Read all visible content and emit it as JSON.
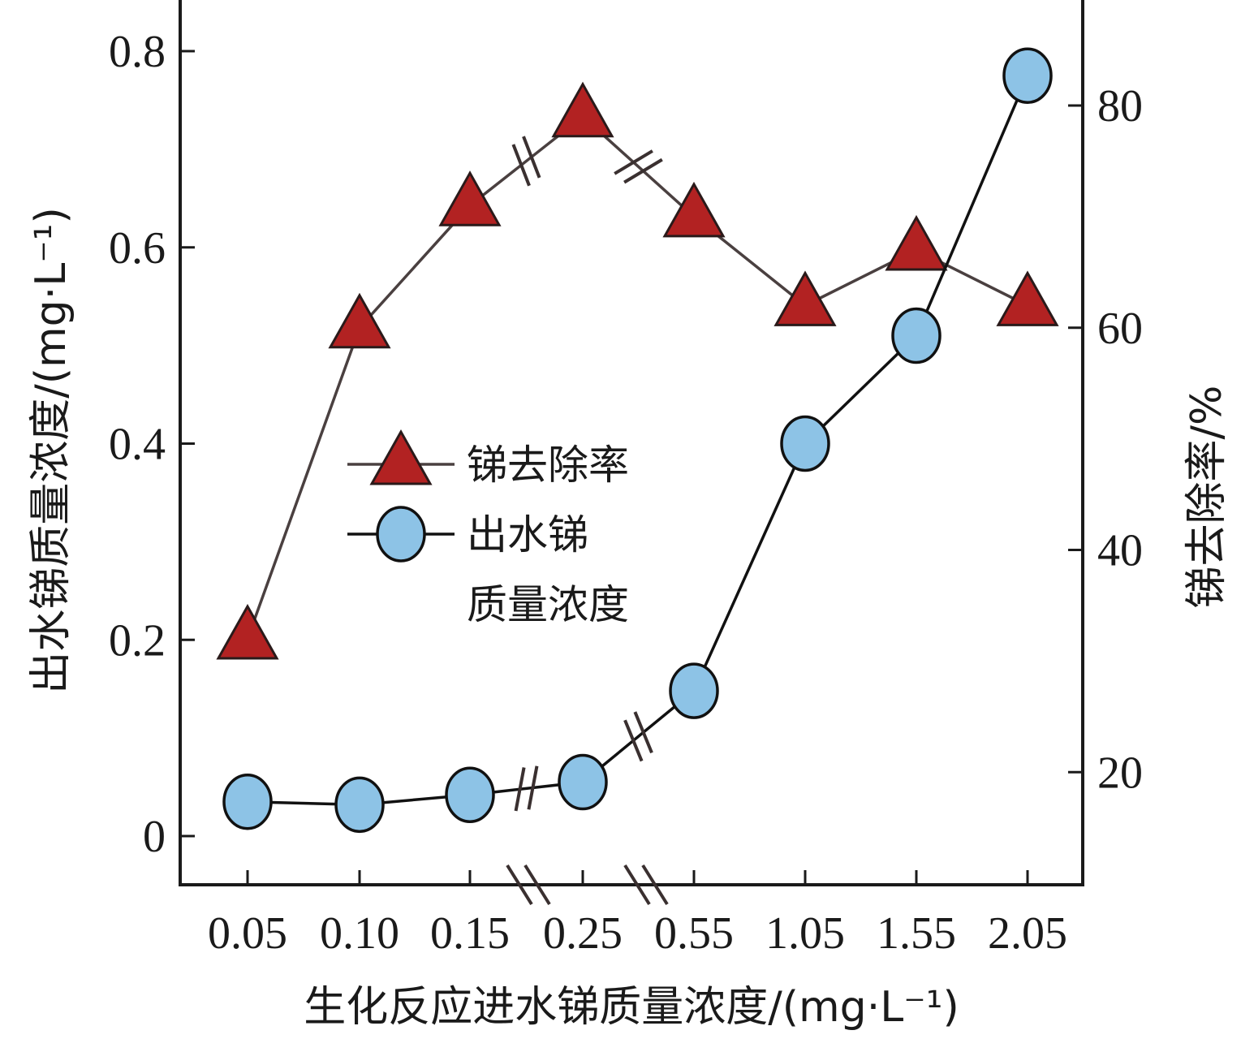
{
  "chart_data": {
    "type": "line",
    "categories": [
      "0.05",
      "0.10",
      "0.15",
      "0.25",
      "0.55",
      "1.05",
      "1.55",
      "2.05"
    ],
    "xlabel": "生化反应进水锑质量浓度/(mg·L⁻¹)",
    "left_ylabel": "出水锑质量浓度/(mg·L⁻¹)",
    "right_ylabel": "锑去除率/%",
    "left_ylim": [
      -0.05,
      0.85
    ],
    "left_ticks": [
      0,
      0.2,
      0.4,
      0.6,
      0.8
    ],
    "left_tick_labels": [
      "0",
      "0.2",
      "0.4",
      "0.6",
      "0.8"
    ],
    "right_ylim": [
      10,
      90
    ],
    "right_ticks": [
      20,
      40,
      60,
      80
    ],
    "right_tick_labels": [
      "20",
      "40",
      "60",
      "80"
    ],
    "axis_breaks": [
      "between 0.15 and 0.25",
      "between 0.25 and 0.55"
    ],
    "series": [
      {
        "name": "锑去除率",
        "axis": "right",
        "marker": "triangle",
        "color": "#b22222",
        "line_color": "#4a4040",
        "values": [
          32,
          60,
          71,
          79,
          70,
          62,
          67,
          62
        ]
      },
      {
        "name": "出水锑质量浓度",
        "legend_lines": [
          "出水锑",
          "质量浓度"
        ],
        "axis": "left",
        "marker": "circle",
        "color": "#8dc3e6",
        "line_color": "#111111",
        "values": [
          0.035,
          0.032,
          0.042,
          0.055,
          0.148,
          0.4,
          0.51,
          0.775
        ]
      }
    ],
    "legend": {
      "placement": "center-left"
    },
    "grid": false
  }
}
